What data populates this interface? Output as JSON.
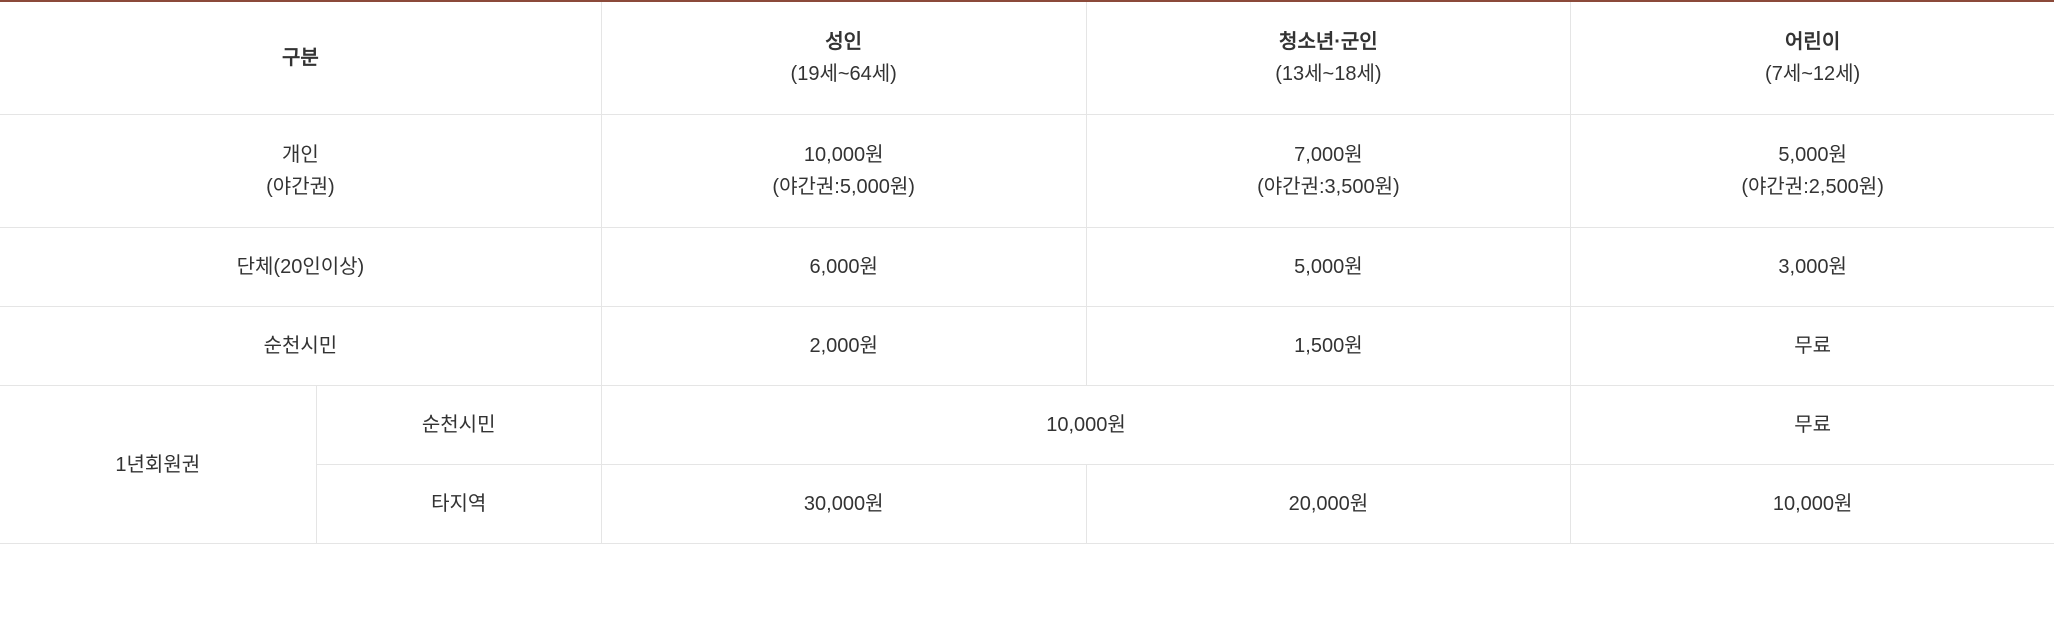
{
  "table": {
    "border_top_color": "#8b4a3a",
    "border_color": "#e5e5e5",
    "text_color": "#333333",
    "background_color": "#ffffff",
    "font_size": 20,
    "header_font_weight": 700,
    "columns": [
      {
        "label_main": "구분",
        "label_sub": ""
      },
      {
        "label_main": "성인",
        "label_sub": "(19세~64세)"
      },
      {
        "label_main": "청소년·군인",
        "label_sub": "(13세~18세)"
      },
      {
        "label_main": "어린이",
        "label_sub": "(7세~12세)"
      }
    ],
    "rows": {
      "individual": {
        "label_main": "개인",
        "label_sub": "(야간권)",
        "adult_main": "10,000원",
        "adult_sub": "(야간권:5,000원)",
        "youth_main": "7,000원",
        "youth_sub": "(야간권:3,500원)",
        "child_main": "5,000원",
        "child_sub": "(야간권:2,500원)"
      },
      "group": {
        "label": "단체(20인이상)",
        "adult": "6,000원",
        "youth": "5,000원",
        "child": "3,000원"
      },
      "citizen": {
        "label": "순천시민",
        "adult": "2,000원",
        "youth": "1,500원",
        "child": "무료"
      },
      "annual": {
        "label": "1년회원권",
        "citizen": {
          "label": "순천시민",
          "adult_youth": "10,000원",
          "child": "무료"
        },
        "other": {
          "label": "타지역",
          "adult": "30,000원",
          "youth": "20,000원",
          "child": "10,000원"
        }
      }
    }
  }
}
